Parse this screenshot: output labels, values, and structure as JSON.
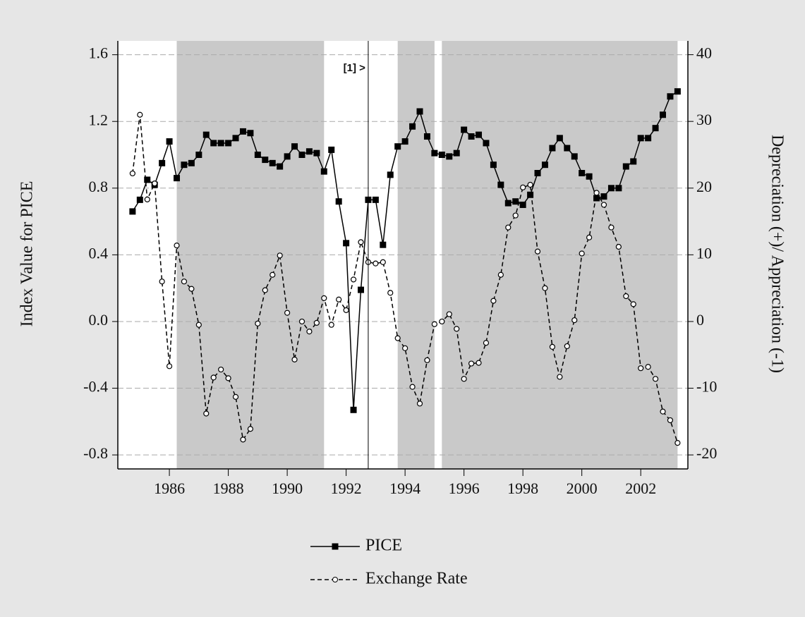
{
  "chart_data": {
    "type": "line",
    "y_label": "Index Value for PICE",
    "y2_label": "Depreciation (+)/ Appreciation (-1)",
    "annotation": "[1] >",
    "vline": 1992.75,
    "shaded": [
      [
        1986.25,
        1991.25
      ],
      [
        1993.75,
        1995
      ],
      [
        1995.25,
        2003.25
      ]
    ],
    "shade_color": "#c9c9c9",
    "grid": true,
    "xlim": [
      1984.25,
      2003.6
    ],
    "xticks": [
      1986,
      1988,
      1990,
      1992,
      1994,
      1996,
      1998,
      2000,
      2002
    ],
    "ylim": [
      -0.884,
      1.683
    ],
    "yticks": [
      {
        "value": -0.8,
        "label": "-0.8"
      },
      {
        "value": -0.4,
        "label": "-0.4"
      },
      {
        "value": 0,
        "label": "0.0"
      },
      0.4,
      0.8,
      1.2,
      1.6
    ],
    "y2lim": [
      -22.1,
      42.07
    ],
    "y2ticks": [
      -20,
      -10,
      0,
      10,
      20,
      30,
      40
    ],
    "x": [
      1984.75,
      1985,
      1985.25,
      1985.5,
      1985.75,
      1986,
      1986.25,
      1986.5,
      1986.75,
      1987,
      1987.25,
      1987.5,
      1987.75,
      1988,
      1988.25,
      1988.5,
      1988.75,
      1989,
      1989.25,
      1989.5,
      1989.75,
      1990,
      1990.25,
      1990.5,
      1990.75,
      1991,
      1991.25,
      1991.5,
      1991.75,
      1992,
      1992.25,
      1992.5,
      1992.75,
      1993,
      1993.25,
      1993.5,
      1993.75,
      1994,
      1994.25,
      1994.5,
      1994.75,
      1995,
      1995.25,
      1995.5,
      1995.75,
      1996,
      1996.25,
      1996.5,
      1996.75,
      1997,
      1997.25,
      1997.5,
      1997.75,
      1998,
      1998.25,
      1998.5,
      1998.75,
      1999,
      1999.25,
      1999.5,
      1999.75,
      2000,
      2000.25,
      2000.5,
      2000.75,
      2001,
      2001.25,
      2001.5,
      2001.75,
      2002,
      2002.25,
      2002.5,
      2002.75,
      2003,
      2003.25
    ],
    "series": [
      {
        "name": "PICE",
        "color": "#000000",
        "marker": "square",
        "dashed": false,
        "values": [
          0.66,
          0.73,
          0.85,
          0.82,
          0.95,
          1.08,
          0.86,
          0.94,
          0.95,
          1.0,
          1.12,
          1.07,
          1.07,
          1.07,
          1.1,
          1.14,
          1.13,
          1.0,
          0.97,
          0.95,
          0.93,
          0.99,
          1.05,
          1.0,
          1.02,
          1.01,
          0.9,
          1.03,
          0.72,
          0.47,
          -0.53,
          0.19,
          0.73,
          0.73,
          0.46,
          0.88,
          1.05,
          1.08,
          1.17,
          1.26,
          1.11,
          1.01,
          1.0,
          0.99,
          1.01,
          1.15,
          1.11,
          1.12,
          1.07,
          0.94,
          0.82,
          0.71,
          0.72,
          0.7,
          0.76,
          0.89,
          0.94,
          1.04,
          1.1,
          1.04,
          0.99,
          0.89,
          0.87,
          0.74,
          0.75,
          0.8,
          0.8,
          0.93,
          0.96,
          1.1,
          1.1,
          1.16,
          1.24,
          1.35,
          1.38
        ]
      },
      {
        "name": "Exchange Rate",
        "color": "#000000",
        "marker": "circle",
        "dashed": true,
        "axis": "y2",
        "values": [
          22.2,
          31.0,
          18.3,
          20.7,
          6.0,
          -6.7,
          11.4,
          6.0,
          4.9,
          -0.5,
          -13.8,
          -8.4,
          -7.2,
          -8.5,
          -11.3,
          -17.7,
          -16.1,
          -0.3,
          4.7,
          7.0,
          9.9,
          1.3,
          -5.7,
          0,
          -1.5,
          -0.2,
          3.5,
          -0.5,
          3.3,
          1.7,
          6.3,
          11.9,
          8.9,
          8.7,
          8.9,
          4.3,
          -2.5,
          -4.0,
          -9.8,
          -12.3,
          -5.8,
          -0.4,
          0,
          1.1,
          -1.1,
          -8.6,
          -6.3,
          -6.2,
          -3.2,
          3.1,
          7.0,
          14.1,
          15.9,
          20.1,
          20.5,
          10.5,
          5.0,
          -3.8,
          -8.3,
          -3.7,
          0.2,
          10.2,
          12.6,
          19.3,
          17.5,
          14.1,
          11.2,
          3.8,
          2.6,
          -7.0,
          -6.8,
          -8.6,
          -13.5,
          -14.8,
          -18.2
        ]
      }
    ]
  }
}
